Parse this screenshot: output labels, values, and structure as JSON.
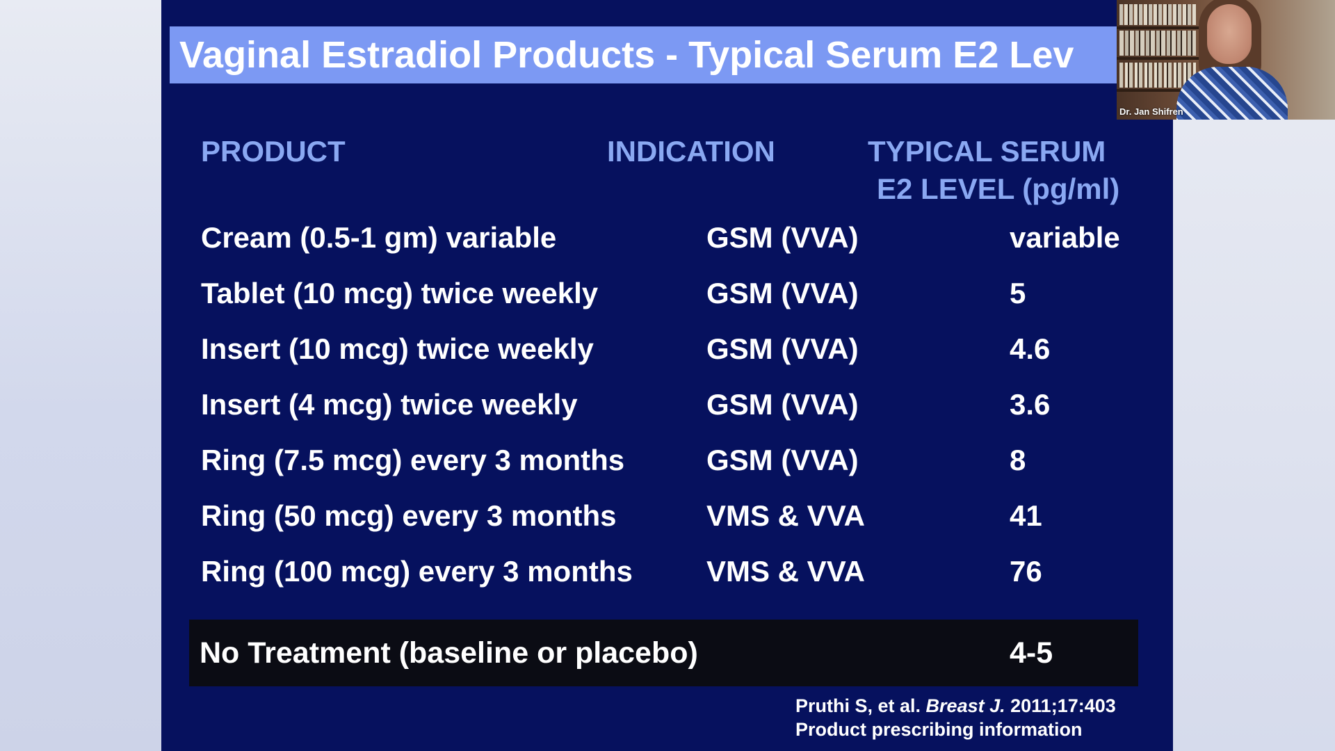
{
  "slide": {
    "title": "Vaginal Estradiol Products - Typical Serum E2 Lev",
    "headers": {
      "product": "PRODUCT",
      "indication": "INDICATION",
      "serum_line1": "TYPICAL SERUM",
      "serum_line2": "E2 LEVEL (pg/ml)"
    },
    "rows": [
      {
        "product": "Cream (0.5-1 gm) variable",
        "indication": "GSM (VVA)",
        "level": "variable"
      },
      {
        "product": "Tablet (10 mcg) twice weekly",
        "indication": "GSM (VVA)",
        "level": "5"
      },
      {
        "product": "Insert (10 mcg) twice weekly",
        "indication": "GSM (VVA)",
        "level": "4.6"
      },
      {
        "product": "Insert (4 mcg) twice weekly",
        "indication": "GSM (VVA)",
        "level": "3.6"
      },
      {
        "product": "Ring (7.5 mcg) every 3 months",
        "indication": "GSM (VVA)",
        "level": "8"
      },
      {
        "product": "Ring (50 mcg) every 3 months",
        "indication": "VMS & VVA",
        "level": "41"
      },
      {
        "product": "Ring (100 mcg) every 3 months",
        "indication": "VMS & VVA",
        "level": "76"
      }
    ],
    "baseline": {
      "product": "No Treatment (baseline or placebo)",
      "level": "4-5"
    },
    "citation": {
      "line1_prefix": "Pruthi S, et al. ",
      "line1_journal": "Breast J.",
      "line1_suffix": " 2011;17:403",
      "line2": "Product prescribing information"
    }
  },
  "video_tile": {
    "participant_name": "Dr. Jan Shifren"
  },
  "colors": {
    "slide_background": "#06115e",
    "title_bar": "#7c99f3",
    "header_text": "#8aa8f2",
    "body_text": "#ffffff",
    "baseline_row": "#0b0c14"
  }
}
